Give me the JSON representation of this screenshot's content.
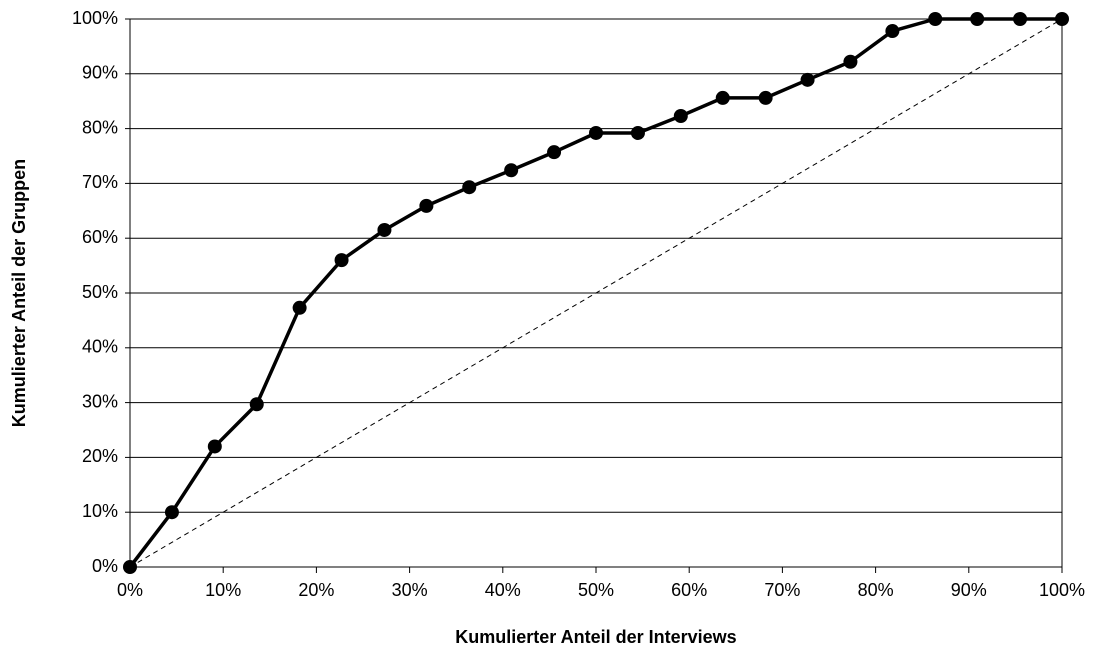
{
  "chart_data": {
    "type": "line",
    "xlabel": "Kumulierter Anteil der Interviews",
    "ylabel": "Kumulierter Anteil der Gruppen",
    "series": [
      {
        "color": "#000000",
        "markers": true,
        "dashed": false,
        "x": [
          0,
          4.5,
          9.1,
          13.6,
          18.2,
          22.7,
          27.3,
          31.8,
          36.4,
          40.9,
          45.5,
          50,
          54.5,
          59.1,
          63.6,
          68.2,
          72.7,
          77.3,
          81.8,
          86.4,
          90.9,
          95.5,
          100
        ],
        "values": [
          0,
          10,
          22,
          29.7,
          47.3,
          56,
          61.5,
          65.9,
          69.3,
          72.4,
          75.7,
          79.2,
          79.2,
          82.3,
          85.6,
          85.6,
          88.9,
          92.2,
          97.8,
          100,
          100,
          100,
          100
        ]
      },
      {
        "color": "#000000",
        "markers": false,
        "dashed": true,
        "x": [
          0,
          100
        ],
        "values": [
          0,
          100
        ]
      }
    ],
    "xlim": [
      0,
      100
    ],
    "ylim": [
      0,
      100
    ],
    "xticks": [
      {
        "value": 0,
        "label": "0%"
      },
      {
        "value": 10,
        "label": "10%"
      },
      {
        "value": 20,
        "label": "20%"
      },
      {
        "value": 30,
        "label": "30%"
      },
      {
        "value": 40,
        "label": "40%"
      },
      {
        "value": 50,
        "label": "50%"
      },
      {
        "value": 60,
        "label": "60%"
      },
      {
        "value": 70,
        "label": "70%"
      },
      {
        "value": 80,
        "label": "80%"
      },
      {
        "value": 90,
        "label": "90%"
      },
      {
        "value": 100,
        "label": "100%"
      }
    ],
    "yticks": [
      {
        "value": 0,
        "label": "0%"
      },
      {
        "value": 10,
        "label": "10%"
      },
      {
        "value": 20,
        "label": "20%"
      },
      {
        "value": 30,
        "label": "30%"
      },
      {
        "value": 40,
        "label": "40%"
      },
      {
        "value": 50,
        "label": "50%"
      },
      {
        "value": 60,
        "label": "60%"
      },
      {
        "value": 70,
        "label": "70%"
      },
      {
        "value": 80,
        "label": "80%"
      },
      {
        "value": 90,
        "label": "90%"
      },
      {
        "value": 100,
        "label": "100%"
      }
    ],
    "grid": "y"
  }
}
